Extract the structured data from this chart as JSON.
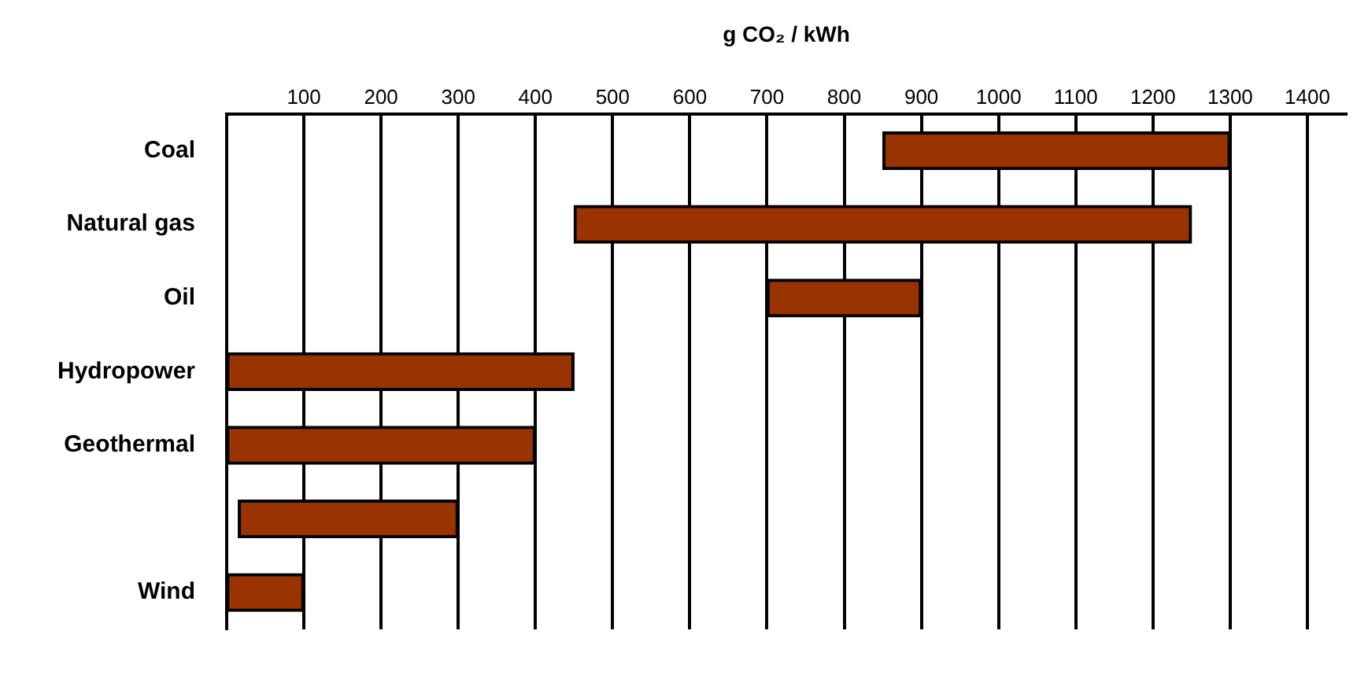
{
  "chart_data": {
    "type": "bar",
    "orientation": "horizontal",
    "xlabel": "g CO₂ / kWh",
    "categories": [
      "Coal",
      "Natural gas",
      "Oil",
      "Hydropower",
      "Geothermal",
      null,
      "Wind"
    ],
    "base": [
      850,
      450,
      700,
      0,
      0,
      15,
      0
    ],
    "values": [
      450,
      800,
      200,
      450,
      400,
      285,
      100
    ],
    "color": "#993300",
    "xlim": [
      0,
      1450
    ],
    "xticks": [
      100,
      200,
      300,
      400,
      500,
      600,
      700,
      800,
      900,
      1000,
      1100,
      1200,
      1300,
      1400
    ],
    "grid": "x",
    "legend": false
  }
}
